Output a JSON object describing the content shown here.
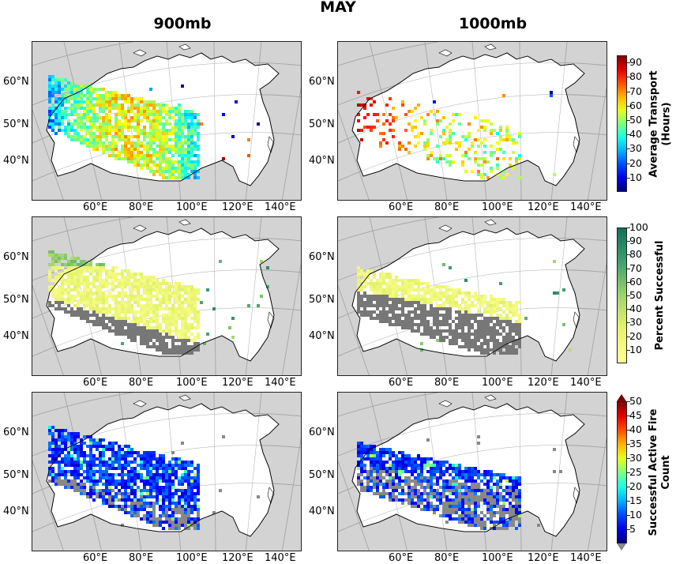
{
  "figure": {
    "title": "MAY",
    "columns": [
      "900mb",
      "1000mb"
    ],
    "lat_labels": [
      "60°N",
      "50°N",
      "40°N"
    ],
    "lon_labels": [
      "60°E",
      "80°E",
      "100°E",
      "120°E",
      "140°E"
    ],
    "colors": {
      "ocean": "#d3d3d3",
      "land": "#ffffff",
      "no_success": "#777777"
    }
  },
  "colorbars": [
    {
      "label": "Average Transport\n(Hours)",
      "colormap": "jet",
      "ticks": [
        "90",
        "80",
        "70",
        "60",
        "50",
        "40",
        "30",
        "20",
        "10"
      ],
      "range": [
        0,
        95
      ]
    },
    {
      "label": "Percent Successful",
      "colormap": "yellow-green",
      "ticks": [
        "100",
        "90",
        "80",
        "70",
        "60",
        "50",
        "40",
        "30",
        "20",
        "10"
      ],
      "range": [
        0,
        100
      ]
    },
    {
      "label": "Successful Active Fire\nCount",
      "colormap": "jet",
      "ticks": [
        "50",
        "45",
        "40",
        "35",
        "30",
        "25",
        "20",
        "15",
        "10",
        "5"
      ],
      "range": [
        0,
        50
      ],
      "extend": "both"
    }
  ],
  "chart_data": [
    {
      "type": "heatmap",
      "row": "Average Transport",
      "pressure_level": "900mb"
    },
    {
      "type": "heatmap",
      "row": "Average Transport",
      "pressure_level": "1000mb"
    },
    {
      "type": "heatmap",
      "row": "Percent Successful",
      "pressure_level": "900mb"
    },
    {
      "type": "heatmap",
      "row": "Percent Successful",
      "pressure_level": "1000mb"
    },
    {
      "type": "heatmap",
      "row": "Successful Active Fire Count",
      "pressure_level": "900mb"
    },
    {
      "type": "heatmap",
      "row": "Successful Active Fire Count",
      "pressure_level": "1000mb"
    }
  ]
}
